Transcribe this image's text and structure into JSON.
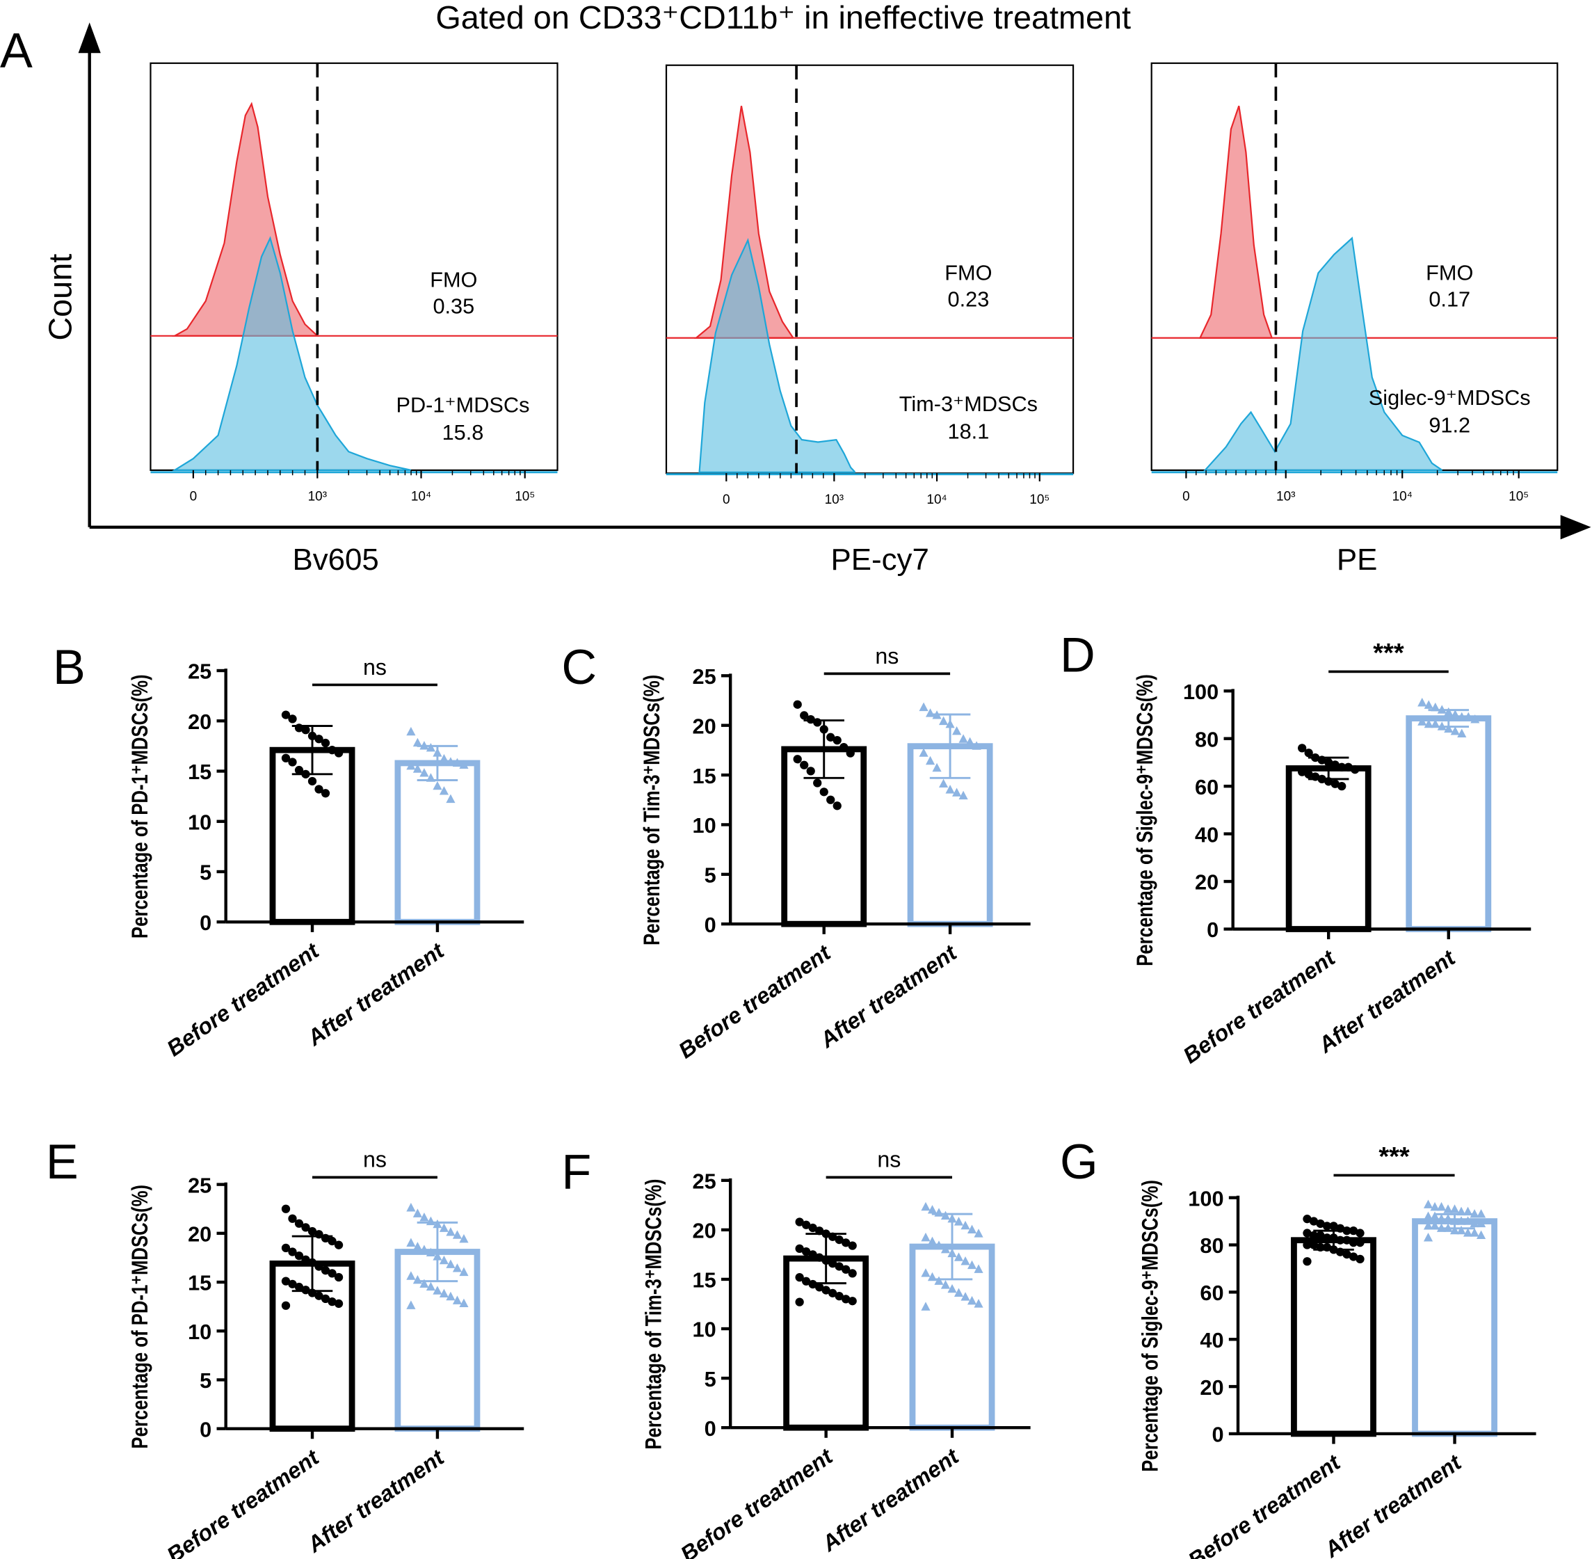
{
  "figure": {
    "panel_letters": [
      "A",
      "B",
      "C",
      "D",
      "E",
      "F",
      "G"
    ]
  },
  "chart_data": [
    {
      "type": "histogram",
      "panel": "A",
      "title": "Gated on CD33⁺CD11b⁺ in ineffective treatment",
      "ylabel": "Count",
      "x_tick_labels": [
        "0",
        "10³",
        "10⁴",
        "10⁵"
      ],
      "colors": {
        "fmo": "#e8262b",
        "stained": "#1ea6d8"
      },
      "subplots": [
        {
          "xlabel": "Bv605",
          "gate": 1000,
          "fmo": {
            "label": "FMO",
            "value": "0.35",
            "points": [
              [
                -150,
                0
              ],
              [
                -50,
                3
              ],
              [
                100,
                15
              ],
              [
                250,
                40
              ],
              [
                350,
                75
              ],
              [
                420,
                95
              ],
              [
                470,
                100
              ],
              [
                520,
                90
              ],
              [
                600,
                60
              ],
              [
                700,
                35
              ],
              [
                800,
                15
              ],
              [
                900,
                5
              ],
              [
                1000,
                0
              ]
            ]
          },
          "stained": {
            "label": "PD-1⁺MDSCs",
            "value": "15.8",
            "points": [
              [
                -150,
                0
              ],
              [
                0,
                5
              ],
              [
                200,
                15
              ],
              [
                350,
                45
              ],
              [
                450,
                70
              ],
              [
                550,
                92
              ],
              [
                620,
                100
              ],
              [
                700,
                85
              ],
              [
                800,
                60
              ],
              [
                900,
                40
              ],
              [
                1000,
                28
              ],
              [
                1100,
                25
              ],
              [
                1500,
                15
              ],
              [
                2000,
                8
              ],
              [
                3000,
                5
              ],
              [
                5000,
                2
              ],
              [
                8000,
                0
              ]
            ]
          }
        },
        {
          "xlabel": "PE-cy7",
          "gate": 650,
          "fmo": {
            "label": "FMO",
            "value": "0.23",
            "points": [
              [
                -280,
                0
              ],
              [
                -150,
                5
              ],
              [
                -50,
                25
              ],
              [
                50,
                70
              ],
              [
                140,
                100
              ],
              [
                220,
                80
              ],
              [
                300,
                45
              ],
              [
                400,
                20
              ],
              [
                520,
                7
              ],
              [
                620,
                0
              ]
            ]
          },
          "stained": {
            "label": "Tim-3⁺MDSCs",
            "value": "18.1",
            "points": [
              [
                -250,
                0
              ],
              [
                -200,
                30
              ],
              [
                -100,
                60
              ],
              [
                50,
                85
              ],
              [
                200,
                100
              ],
              [
                300,
                80
              ],
              [
                400,
                55
              ],
              [
                500,
                35
              ],
              [
                600,
                20
              ],
              [
                700,
                14
              ],
              [
                850,
                13
              ],
              [
                1050,
                14
              ],
              [
                1250,
                8
              ],
              [
                1450,
                2
              ],
              [
                1600,
                0
              ]
            ]
          }
        },
        {
          "xlabel": "PE",
          "gate": 900,
          "fmo": {
            "label": "FMO",
            "value": "0.17",
            "points": [
              [
                140,
                0
              ],
              [
                250,
                10
              ],
              [
                350,
                45
              ],
              [
                450,
                90
              ],
              [
                530,
                100
              ],
              [
                600,
                80
              ],
              [
                680,
                40
              ],
              [
                780,
                10
              ],
              [
                860,
                0
              ]
            ]
          },
          "stained": {
            "label": "Siglec-9⁺MDSCs",
            "value": "91.2",
            "points": [
              [
                190,
                0
              ],
              [
                400,
                10
              ],
              [
                550,
                20
              ],
              [
                650,
                25
              ],
              [
                750,
                18
              ],
              [
                890,
                8
              ],
              [
                1100,
                20
              ],
              [
                1400,
                60
              ],
              [
                1900,
                85
              ],
              [
                2600,
                93
              ],
              [
                3700,
                100
              ],
              [
                4500,
                70
              ],
              [
                5500,
                40
              ],
              [
                7000,
                25
              ],
              [
                10000,
                15
              ],
              [
                14000,
                12
              ],
              [
                18000,
                3
              ],
              [
                22000,
                0
              ]
            ]
          }
        }
      ]
    },
    {
      "type": "bar",
      "panel": "B",
      "ylabel": "Percentage of PD-1⁺MDSCs(%)",
      "categories": [
        "Before treatment",
        "After treatment"
      ],
      "ylim": [
        0,
        25
      ],
      "yticks": [
        0,
        5,
        10,
        15,
        20,
        25
      ],
      "significance": "ns",
      "colors": [
        "#000000",
        "#8db4e2"
      ],
      "series": [
        {
          "mean": 17.1,
          "sd": 2.4,
          "points": [
            20.6,
            20.2,
            19.3,
            19.1,
            18.5,
            18.2,
            17.8,
            17.1,
            16.8,
            16.3,
            15.9,
            15.1,
            14.7,
            14.0,
            13.2,
            12.8
          ]
        },
        {
          "mean": 15.8,
          "sd": 1.7,
          "points": [
            18.9,
            17.8,
            17.5,
            17.3,
            16.8,
            16.2,
            15.9,
            15.8,
            15.6,
            15.5,
            15.2,
            14.8,
            14.3,
            13.5,
            13.0,
            12.2
          ]
        }
      ]
    },
    {
      "type": "bar",
      "panel": "C",
      "ylabel": "Percentage of Tim-3⁺MDSCs(%)",
      "categories": [
        "Before treatment",
        "After treatment"
      ],
      "ylim": [
        0,
        25
      ],
      "yticks": [
        0,
        5,
        10,
        15,
        20,
        25
      ],
      "significance": "ns",
      "colors": [
        "#000000",
        "#8db4e2"
      ],
      "series": [
        {
          "mean": 17.6,
          "sd": 2.9,
          "points": [
            22.1,
            21.0,
            20.6,
            20.3,
            19.6,
            18.8,
            18.5,
            17.8,
            17.2,
            16.6,
            16.0,
            15.4,
            14.2,
            13.3,
            12.5,
            11.9
          ]
        },
        {
          "mean": 17.9,
          "sd": 3.2,
          "points": [
            21.8,
            21.2,
            21.0,
            20.4,
            20.1,
            19.4,
            18.6,
            18.3,
            17.9,
            17.2,
            16.4,
            15.7,
            14.1,
            13.5,
            13.2,
            12.9
          ]
        }
      ]
    },
    {
      "type": "bar",
      "panel": "D",
      "ylabel": "Percentage of Siglec-9⁺MDSCs(%)",
      "categories": [
        "Before treatment",
        "After treatment"
      ],
      "ylim": [
        0,
        100
      ],
      "yticks": [
        0,
        20,
        40,
        60,
        80,
        100
      ],
      "significance": "***",
      "colors": [
        "#000000",
        "#8db4e2"
      ],
      "series": [
        {
          "mean": 67.5,
          "sd": 4.5,
          "points": [
            76,
            74,
            72,
            71,
            70,
            69,
            68,
            68,
            67,
            66,
            65,
            64,
            63,
            62,
            61,
            60
          ]
        },
        {
          "mean": 88.5,
          "sd": 3.5,
          "points": [
            95,
            94,
            93,
            92,
            91,
            90,
            89,
            89,
            88,
            87,
            86,
            86,
            85,
            84,
            83,
            82
          ]
        }
      ]
    },
    {
      "type": "bar",
      "panel": "E",
      "ylabel": "Percentage of PD-1⁺MDSCs(%)",
      "categories": [
        "Before treatment",
        "After treatment"
      ],
      "ylim": [
        0,
        25
      ],
      "yticks": [
        0,
        5,
        10,
        15,
        20,
        25
      ],
      "significance": "ns",
      "colors": [
        "#000000",
        "#8db4e2"
      ],
      "series": [
        {
          "mean": 16.9,
          "sd": 2.8,
          "points": [
            22.5,
            21.5,
            21.0,
            20.6,
            20.2,
            19.9,
            19.5,
            19.2,
            18.8,
            18.5,
            18.1,
            17.7,
            17.3,
            17.0,
            16.6,
            16.2,
            15.9,
            15.5,
            15.1,
            14.8,
            14.5,
            14.2,
            13.9,
            13.6,
            13.3,
            13.0,
            12.8,
            12.6
          ]
        },
        {
          "mean": 18.1,
          "sd": 3.0,
          "points": [
            22.6,
            22.0,
            21.6,
            21.2,
            20.9,
            20.5,
            20.1,
            19.8,
            19.4,
            19.0,
            18.6,
            18.3,
            18.0,
            17.6,
            17.2,
            16.8,
            16.4,
            16.0,
            15.6,
            15.2,
            14.8,
            14.5,
            14.1,
            13.8,
            13.5,
            13.1,
            12.8,
            12.6
          ]
        }
      ]
    },
    {
      "type": "bar",
      "panel": "F",
      "ylabel": "Percentage of Tim-3⁺MDSCs(%)",
      "categories": [
        "Before treatment",
        "After treatment"
      ],
      "ylim": [
        0,
        25
      ],
      "yticks": [
        0,
        5,
        10,
        15,
        20,
        25
      ],
      "significance": "ns",
      "colors": [
        "#000000",
        "#8db4e2"
      ],
      "series": [
        {
          "mean": 17.1,
          "sd": 2.5,
          "points": [
            20.8,
            20.5,
            20.2,
            19.9,
            19.6,
            19.3,
            19.0,
            18.7,
            18.4,
            18.1,
            17.8,
            17.5,
            17.2,
            16.9,
            16.6,
            16.3,
            16.0,
            15.6,
            15.2,
            14.8,
            14.5,
            14.2,
            13.9,
            13.6,
            13.3,
            13.0,
            12.8,
            12.7
          ]
        },
        {
          "mean": 18.3,
          "sd": 3.3,
          "points": [
            22.3,
            22.0,
            21.7,
            21.4,
            21.1,
            20.8,
            20.4,
            20.0,
            19.6,
            19.2,
            18.8,
            18.4,
            18.0,
            17.6,
            17.2,
            16.8,
            16.4,
            16.0,
            15.6,
            15.2,
            14.8,
            14.4,
            14.0,
            13.6,
            13.2,
            12.8,
            12.5,
            12.2
          ]
        }
      ]
    },
    {
      "type": "bar",
      "panel": "G",
      "ylabel": "Percentage of Siglec-9⁺MDSCs(%)",
      "categories": [
        "Before treatment",
        "After treatment"
      ],
      "ylim": [
        0,
        100
      ],
      "yticks": [
        0,
        20,
        40,
        60,
        80,
        100
      ],
      "significance": "***",
      "colors": [
        "#000000",
        "#8db4e2"
      ],
      "series": [
        {
          "mean": 82,
          "sd": 4,
          "points": [
            91,
            90,
            89,
            88,
            88,
            87,
            86,
            86,
            85,
            85,
            84,
            84,
            83,
            83,
            82,
            82,
            81,
            81,
            80,
            80,
            79,
            79,
            78,
            77,
            76,
            75,
            74,
            73
          ]
        },
        {
          "mean": 90,
          "sd": 3,
          "points": [
            97,
            96,
            96,
            95,
            95,
            94,
            94,
            93,
            93,
            92,
            92,
            91,
            91,
            90,
            90,
            90,
            89,
            89,
            88,
            88,
            87,
            87,
            86,
            86,
            85,
            85,
            84,
            83
          ]
        }
      ]
    }
  ]
}
